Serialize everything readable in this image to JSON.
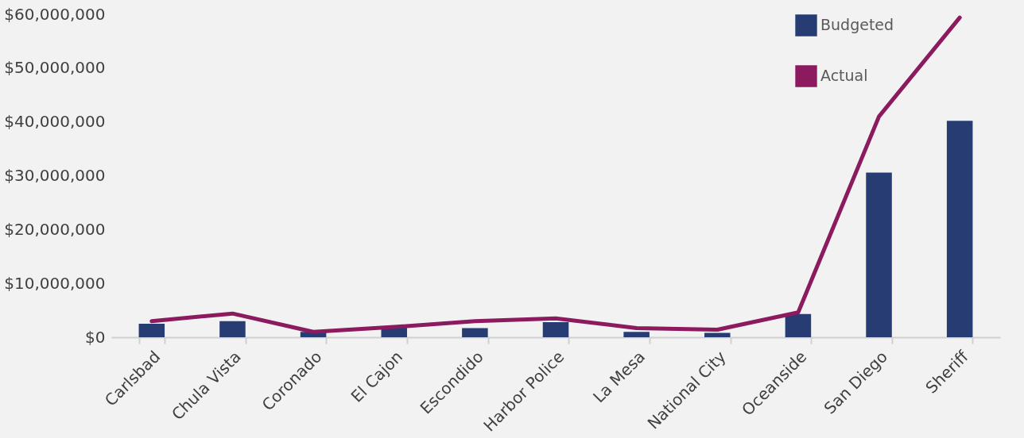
{
  "chart_data": {
    "type": "bar",
    "categories": [
      "Carlsbad",
      "Chula Vista",
      "Coronado",
      "El Cajon",
      "Escondido",
      "Harbor Police",
      "La Mesa",
      "National City",
      "Oceanside",
      "San Diego",
      "Sheriff"
    ],
    "series": [
      {
        "name": "Budgeted",
        "color": "#283c74",
        "values": [
          2500000,
          3000000,
          1000000,
          1900000,
          1700000,
          2800000,
          1000000,
          800000,
          4300000,
          30600000,
          40200000
        ]
      },
      {
        "name": "Actual",
        "type": "line",
        "color": "#8b1a5e",
        "values": [
          3000000,
          4400000,
          1000000,
          1900000,
          3000000,
          3500000,
          1700000,
          1400000,
          4600000,
          41000000,
          59400000
        ]
      }
    ],
    "ylim": [
      0,
      60000000
    ],
    "yticks": [
      {
        "value": 0,
        "label": "$0"
      },
      {
        "value": 10000000,
        "label": "$10,000,000"
      },
      {
        "value": 20000000,
        "label": "$20,000,000"
      },
      {
        "value": 30000000,
        "label": "$30,000,000"
      },
      {
        "value": 40000000,
        "label": "$40,000,000"
      },
      {
        "value": 50000000,
        "label": "$50,000,000"
      },
      {
        "value": 60000000,
        "label": "$60,000,000"
      }
    ],
    "grid": false,
    "legend": "top right"
  }
}
